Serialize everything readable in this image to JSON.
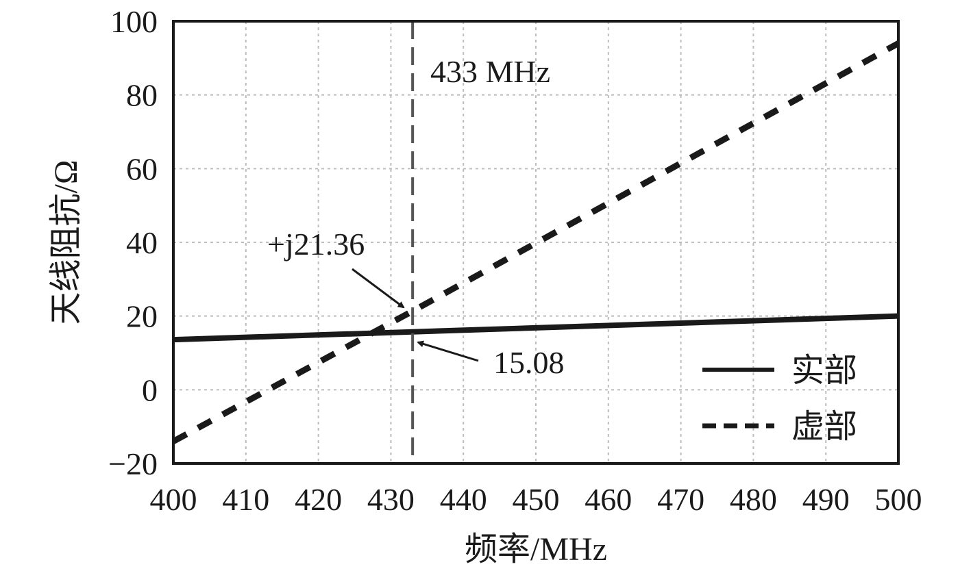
{
  "chart_data": {
    "type": "line",
    "xlabel": "频率/MHz",
    "ylabel": "天线阻抗/Ω",
    "xlim": [
      400,
      500
    ],
    "ylim": [
      -20,
      100
    ],
    "xticks": [
      "400",
      "410",
      "420",
      "430",
      "440",
      "450",
      "460",
      "470",
      "480",
      "490",
      "500"
    ],
    "yticks": [
      "−20",
      "0",
      "20",
      "40",
      "60",
      "80",
      "100"
    ],
    "grid": true,
    "legend_position": "bottom-right",
    "series": [
      {
        "name": "实部",
        "style": "solid",
        "color": "#1a1a1a",
        "x": [
          400,
          500
        ],
        "y": [
          13.6,
          20.0
        ]
      },
      {
        "name": "虚部",
        "style": "dashed",
        "color": "#1a1a1a",
        "x": [
          400,
          433,
          500
        ],
        "y": [
          -14.0,
          21.36,
          94.0
        ]
      }
    ],
    "reference_line": {
      "x": 433,
      "label": "433 MHz",
      "color": "#555555"
    },
    "annotations": [
      {
        "text": "+j21.36",
        "x": 433,
        "y": 21.36
      },
      {
        "text": "15.08",
        "x": 433,
        "y": 15.08
      }
    ]
  }
}
